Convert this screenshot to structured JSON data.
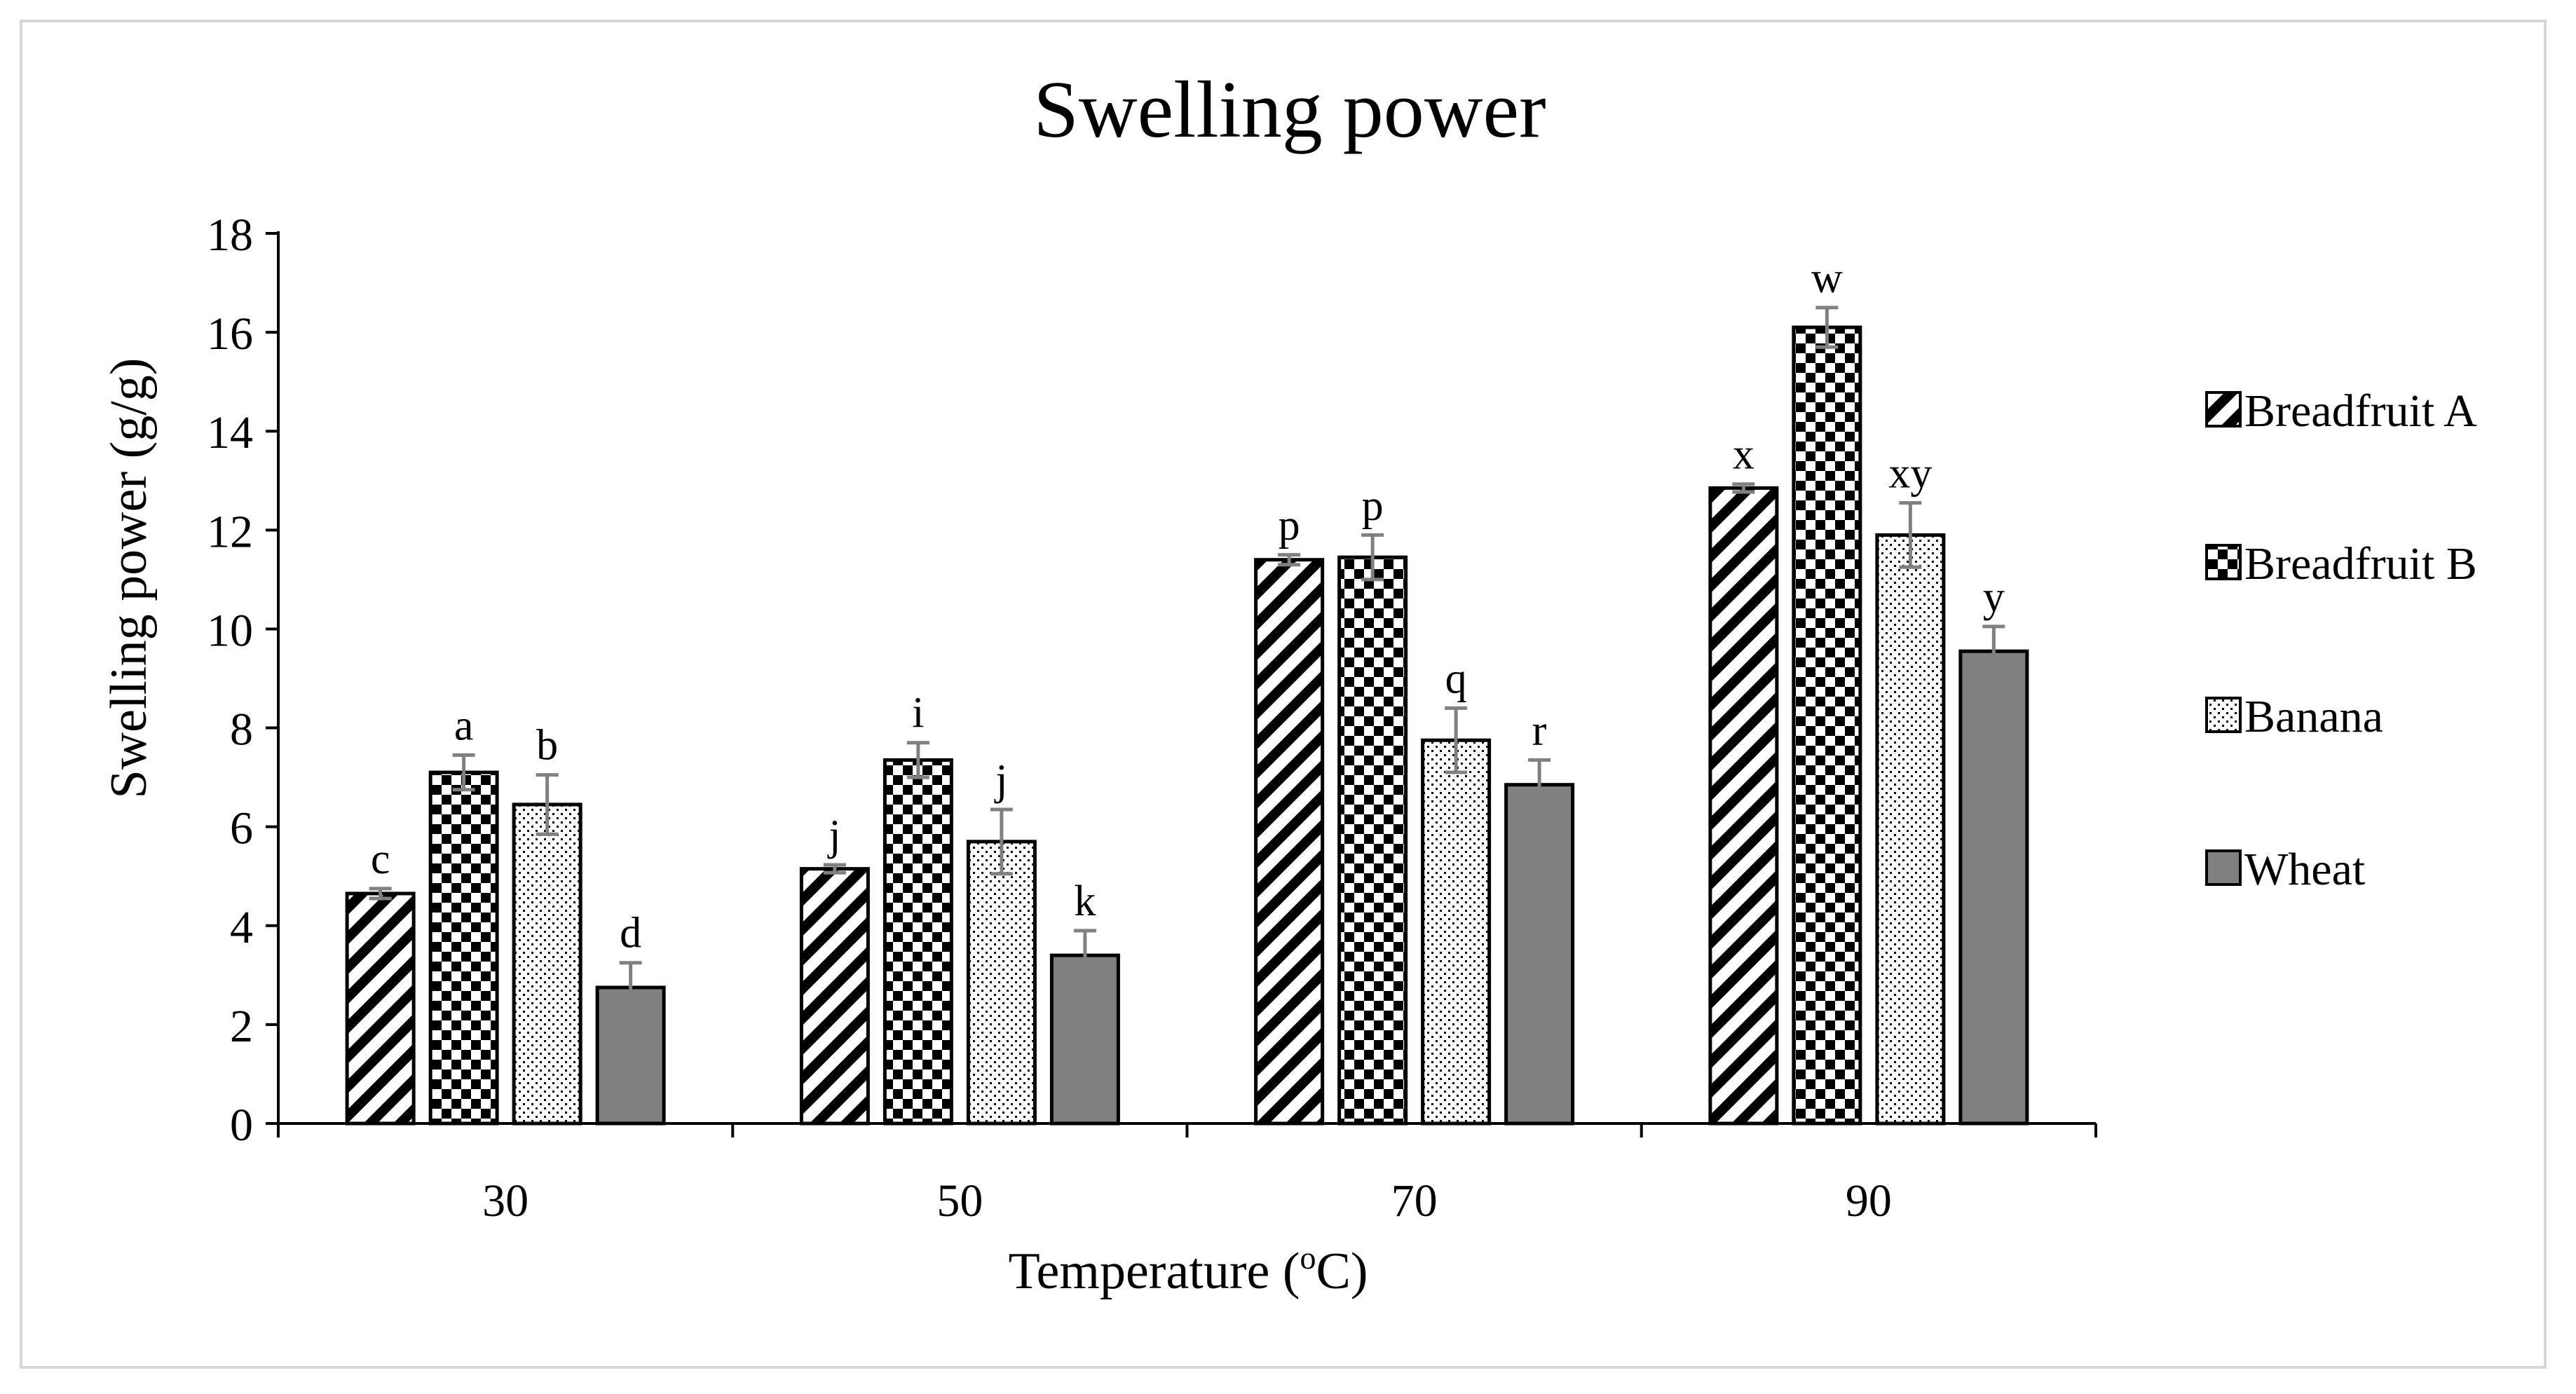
{
  "chart_data": {
    "type": "bar",
    "title": "Swelling power",
    "xlabel": "Temperature (°C)",
    "xlabel_parts": [
      "Temperature (",
      "o",
      "C)"
    ],
    "ylabel": "Swelling power (g/g)",
    "ylim": [
      0,
      18
    ],
    "yticks": [
      0,
      2,
      4,
      6,
      8,
      10,
      12,
      14,
      16,
      18
    ],
    "categories": [
      "30",
      "50",
      "70",
      "90"
    ],
    "grid": false,
    "legend_position": "right",
    "series": [
      {
        "name": "Breadfruit A",
        "pattern": "diagonal",
        "values": [
          4.65,
          5.15,
          11.4,
          12.85
        ],
        "errors": [
          0.1,
          0.08,
          0.1,
          0.08
        ],
        "letters": [
          "c",
          "j",
          "p",
          "x"
        ]
      },
      {
        "name": "Breadfruit B",
        "pattern": "checker",
        "values": [
          7.1,
          7.35,
          11.45,
          16.1
        ],
        "errors": [
          0.35,
          0.35,
          0.45,
          0.4
        ],
        "letters": [
          "a",
          "i",
          "p",
          "w"
        ]
      },
      {
        "name": "Banana",
        "pattern": "dots",
        "values": [
          6.45,
          5.7,
          7.75,
          11.9
        ],
        "errors": [
          0.6,
          0.65,
          0.65,
          0.65
        ],
        "letters": [
          "b",
          "j",
          "q",
          "xy"
        ]
      },
      {
        "name": "Wheat",
        "pattern": "solid",
        "values": [
          2.75,
          3.4,
          6.85,
          9.55
        ],
        "errors": [
          0.5,
          0.5,
          0.5,
          0.5
        ],
        "letters": [
          "d",
          "k",
          "r",
          "y"
        ]
      }
    ],
    "colors": {
      "wheat": "#808080",
      "error_bar": "#808080",
      "axis": "#000000",
      "text": "#000000"
    }
  }
}
